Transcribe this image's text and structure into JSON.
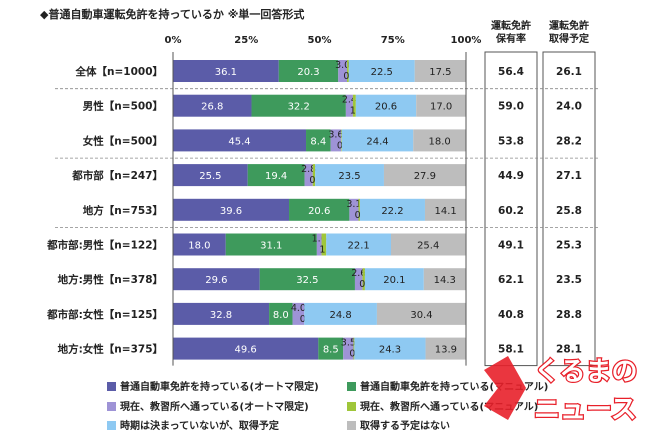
{
  "chart_data": {
    "type": "bar",
    "orientation": "horizontal",
    "stacked": true,
    "title": "◆普通自動車運転免許を持っているか ※単一回答形式",
    "x_ticks": [
      "0%",
      "25%",
      "50%",
      "75%",
      "100%"
    ],
    "xlim": [
      0,
      100
    ],
    "categories": [
      "全体【n=1000】",
      "男性【n=500】",
      "女性【n=500】",
      "都市部【n=247】",
      "地方【n=753】",
      "都市部:男性【n=122】",
      "地方:男性【n=378】",
      "都市部:女性【n=125】",
      "地方:女性【n=375】"
    ],
    "series": [
      {
        "name": "普通自動車免許を持っている(オートマ限定)",
        "color": "#5b5ca8",
        "values": [
          36.1,
          26.8,
          45.4,
          25.5,
          39.6,
          18.0,
          29.6,
          32.8,
          49.6
        ]
      },
      {
        "name": "普通自動車免許を持っている(マニュアル)",
        "color": "#3e9a5c",
        "values": [
          20.3,
          32.2,
          8.4,
          19.4,
          20.6,
          31.1,
          32.5,
          8.0,
          8.5
        ]
      },
      {
        "name": "現在、教習所へ通っている(オートマ限定)",
        "color": "#9e93d6",
        "values": [
          3.0,
          2.4,
          3.6,
          2.8,
          3.1,
          1.6,
          2.6,
          4.0,
          3.5
        ]
      },
      {
        "name": "現在、教習所へ通っている(マニュアル)",
        "color": "#9fc63a",
        "values": [
          0.6,
          1.0,
          0.2,
          0.8,
          0.5,
          1.6,
          0.8,
          0.0,
          0.3
        ]
      },
      {
        "name": "時期は決まっていないが、取得予定",
        "color": "#8ec9f2",
        "values": [
          22.5,
          20.6,
          24.4,
          23.5,
          22.2,
          22.1,
          20.1,
          24.8,
          24.3
        ]
      },
      {
        "name": "取得する予定はない",
        "color": "#bdbdbd",
        "values": [
          17.5,
          17.0,
          18.0,
          27.9,
          14.1,
          25.4,
          14.3,
          30.4,
          13.9
        ]
      }
    ],
    "side_columns": [
      {
        "header_line1": "運転免許",
        "header_line2": "保有率",
        "values": [
          "56.4",
          "59.0",
          "53.8",
          "44.9",
          "60.2",
          "49.1",
          "62.1",
          "40.8",
          "58.1"
        ]
      },
      {
        "header_line1": "運転免許",
        "header_line2": "取得予定",
        "values": [
          "26.1",
          "24.0",
          "28.2",
          "27.1",
          "25.8",
          "25.3",
          "23.5",
          "28.8",
          "28.1"
        ]
      }
    ],
    "grid": false,
    "legend_position": "bottom"
  },
  "logo": {
    "line1": "くるまの",
    "line2": "ニュース"
  }
}
